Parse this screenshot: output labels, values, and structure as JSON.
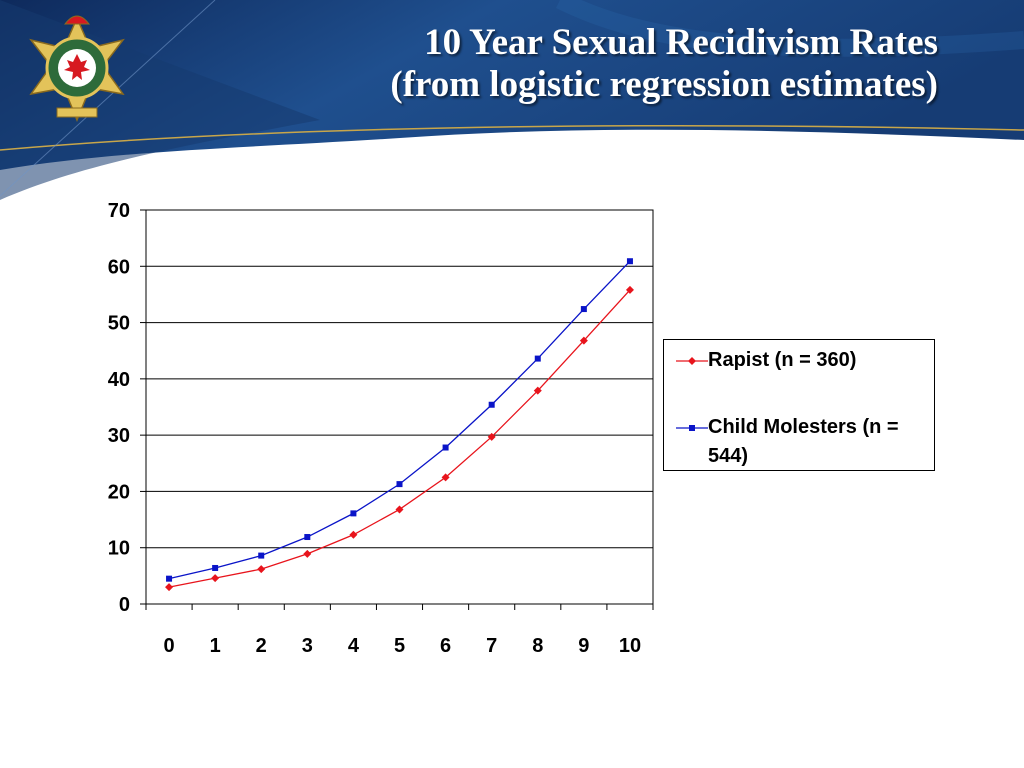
{
  "slide": {
    "title_line1": "10 Year Sexual Recidivism Rates",
    "title_line2": "(from logistic regression estimates)",
    "colors": {
      "header_dark": "#0e2a5c",
      "header_mid": "#1f4f8e",
      "accent_gold": "#c8a64a"
    },
    "logo_icon": "correctional-service-canada-badge-icon"
  },
  "chart_data": {
    "type": "line",
    "title": "",
    "xlabel": "",
    "ylabel": "",
    "categories": [
      "0",
      "1",
      "2",
      "3",
      "4",
      "5",
      "6",
      "7",
      "8",
      "9",
      "10"
    ],
    "ylim": [
      0,
      70
    ],
    "y_ticks": [
      0,
      10,
      20,
      30,
      40,
      50,
      60,
      70
    ],
    "grid": true,
    "legend_position": "right",
    "series": [
      {
        "name": "Rapist (n = 360)",
        "color": "#e8141c",
        "marker": "diamond",
        "values": [
          3.0,
          4.6,
          6.2,
          8.9,
          12.3,
          16.8,
          22.5,
          29.7,
          37.9,
          46.8,
          55.8
        ]
      },
      {
        "name": "Child Molesters (n = 544)",
        "color": "#0a14c8",
        "marker": "square",
        "values": [
          4.5,
          6.4,
          8.6,
          11.9,
          16.1,
          21.3,
          27.8,
          35.4,
          43.6,
          52.4,
          60.9
        ]
      }
    ]
  }
}
